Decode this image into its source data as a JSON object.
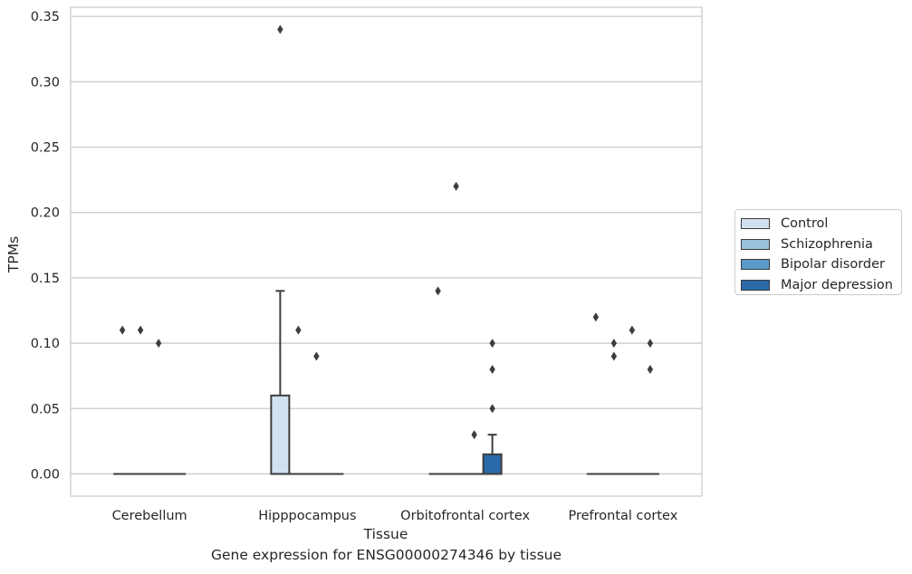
{
  "chart_data": {
    "type": "box",
    "caption": "Gene expression for ENSG00000274346 by tissue",
    "xlabel": "Tissue",
    "ylabel": "TPMs",
    "ylim": [
      -0.017,
      0.357
    ],
    "yticks": [
      "0.00",
      "0.05",
      "0.10",
      "0.15",
      "0.20",
      "0.25",
      "0.30",
      "0.35"
    ],
    "grid": "horizontal",
    "legend_position": "right",
    "categories": [
      "Cerebellum",
      "Hipppocampus",
      "Orbitofrontal cortex",
      "Prefrontal cortex"
    ],
    "series": [
      {
        "name": "Control",
        "color": "#d2e1f1",
        "boxes": [
          {
            "category": "Cerebellum",
            "q1": 0,
            "median": 0,
            "q3": 0,
            "whisker_low": 0,
            "whisker_high": 0,
            "outliers": [
              0.11
            ]
          },
          {
            "category": "Hipppocampus",
            "q1": 0,
            "median": 0,
            "q3": 0.06,
            "whisker_low": 0,
            "whisker_high": 0.14,
            "outliers": [
              0.34
            ]
          },
          {
            "category": "Orbitofrontal cortex",
            "q1": 0,
            "median": 0,
            "q3": 0,
            "whisker_low": 0,
            "whisker_high": 0,
            "outliers": [
              0.14
            ]
          },
          {
            "category": "Prefrontal cortex",
            "q1": 0,
            "median": 0,
            "q3": 0,
            "whisker_low": 0,
            "whisker_high": 0,
            "outliers": [
              0.12
            ]
          }
        ]
      },
      {
        "name": "Schizophrenia",
        "color": "#9bc3de",
        "boxes": [
          {
            "category": "Cerebellum",
            "q1": 0,
            "median": 0,
            "q3": 0,
            "whisker_low": 0,
            "whisker_high": 0,
            "outliers": [
              0.11
            ]
          },
          {
            "category": "Hipppocampus",
            "q1": 0,
            "median": 0,
            "q3": 0,
            "whisker_low": 0,
            "whisker_high": 0,
            "outliers": [
              0.11
            ]
          },
          {
            "category": "Orbitofrontal cortex",
            "q1": 0,
            "median": 0,
            "q3": 0,
            "whisker_low": 0,
            "whisker_high": 0,
            "outliers": [
              0.22
            ]
          },
          {
            "category": "Prefrontal cortex",
            "q1": 0,
            "median": 0,
            "q3": 0,
            "whisker_low": 0,
            "whisker_high": 0,
            "outliers": [
              0.1,
              0.09
            ]
          }
        ]
      },
      {
        "name": "Bipolar disorder",
        "color": "#5a9ac9",
        "boxes": [
          {
            "category": "Cerebellum",
            "q1": 0,
            "median": 0,
            "q3": 0,
            "whisker_low": 0,
            "whisker_high": 0,
            "outliers": [
              0.1
            ]
          },
          {
            "category": "Hipppocampus",
            "q1": 0,
            "median": 0,
            "q3": 0,
            "whisker_low": 0,
            "whisker_high": 0,
            "outliers": [
              0.09
            ]
          },
          {
            "category": "Orbitofrontal cortex",
            "q1": 0,
            "median": 0,
            "q3": 0,
            "whisker_low": 0,
            "whisker_high": 0,
            "outliers": [
              0.03
            ]
          },
          {
            "category": "Prefrontal cortex",
            "q1": 0,
            "median": 0,
            "q3": 0,
            "whisker_low": 0,
            "whisker_high": 0,
            "outliers": [
              0.11
            ]
          }
        ]
      },
      {
        "name": "Major depression",
        "color": "#2a6aa8",
        "boxes": [
          {
            "category": "Cerebellum",
            "q1": 0,
            "median": 0,
            "q3": 0,
            "whisker_low": 0,
            "whisker_high": 0,
            "outliers": []
          },
          {
            "category": "Hipppocampus",
            "q1": 0,
            "median": 0,
            "q3": 0,
            "whisker_low": 0,
            "whisker_high": 0,
            "outliers": []
          },
          {
            "category": "Orbitofrontal cortex",
            "q1": 0,
            "median": 0,
            "q3": 0.015,
            "whisker_low": 0,
            "whisker_high": 0.03,
            "outliers": [
              0.05,
              0.08,
              0.1
            ]
          },
          {
            "category": "Prefrontal cortex",
            "q1": 0,
            "median": 0,
            "q3": 0,
            "whisker_low": 0,
            "whisker_high": 0,
            "outliers": [
              0.1,
              0.08
            ]
          }
        ]
      }
    ]
  }
}
